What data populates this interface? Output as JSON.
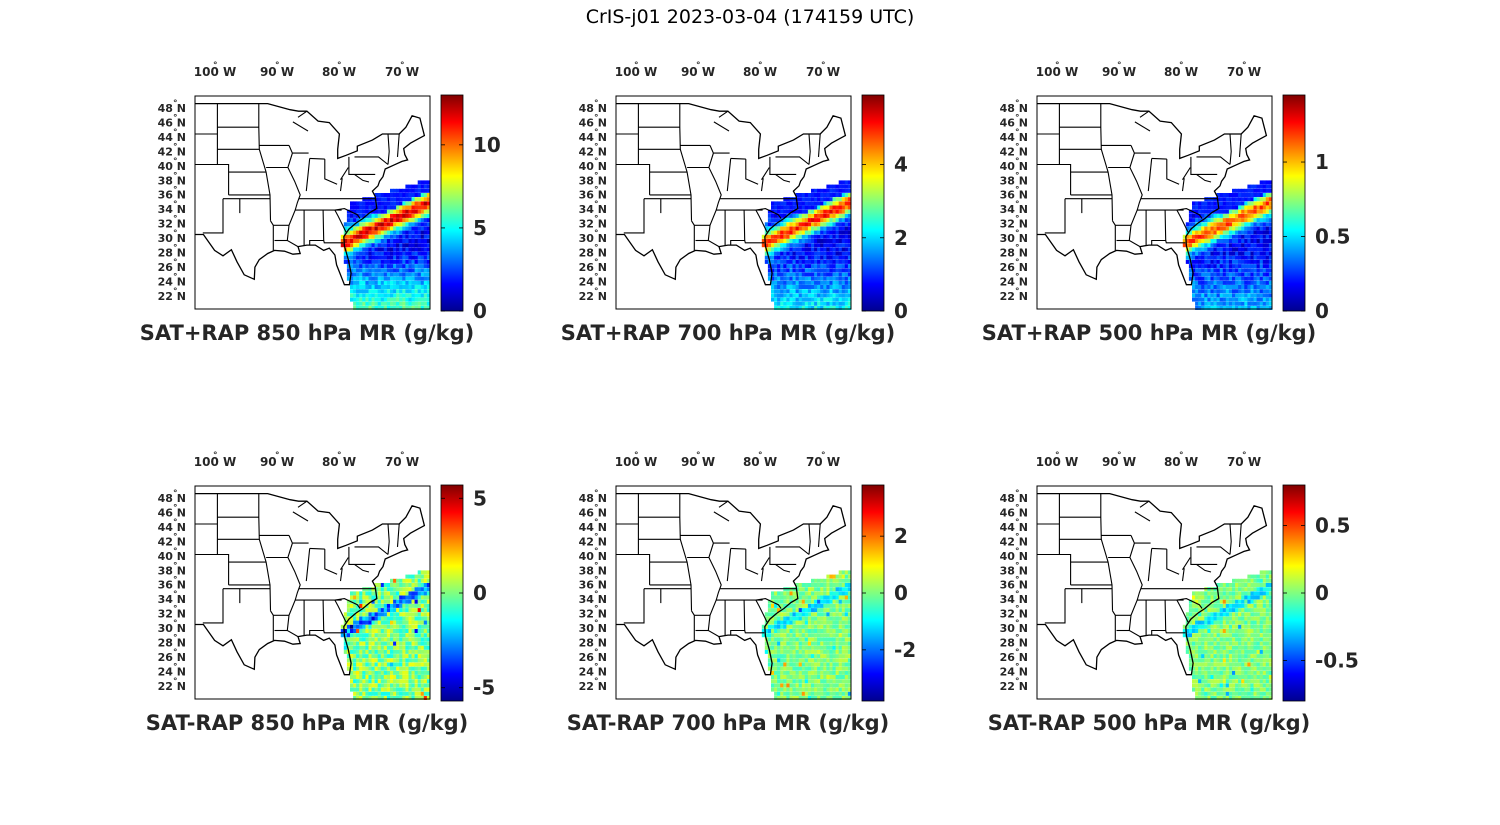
{
  "figure": {
    "title": "CrIS-j01 2023-03-04 (174159 UTC)"
  },
  "panels": [
    {
      "title": "SAT+RAP 850 hPa MR (g/kg)",
      "clim": [
        0,
        13
      ],
      "ticks": [
        {
          "v": 0,
          "t": "0"
        },
        {
          "v": 5,
          "t": "5"
        },
        {
          "v": 10,
          "t": "10"
        }
      ],
      "kind": "total",
      "strength": 1.0
    },
    {
      "title": "SAT+RAP 700 hPa MR (g/kg)",
      "clim": [
        0,
        5.9
      ],
      "ticks": [
        {
          "v": 0,
          "t": "0"
        },
        {
          "v": 2,
          "t": "2"
        },
        {
          "v": 4,
          "t": "4"
        }
      ],
      "kind": "total",
      "strength": 0.75
    },
    {
      "title": "SAT+RAP 500 hPa MR (g/kg)",
      "clim": [
        0,
        1.45
      ],
      "ticks": [
        {
          "v": 0,
          "t": "0"
        },
        {
          "v": 0.5,
          "t": "0.5"
        },
        {
          "v": 1,
          "t": "1"
        }
      ],
      "kind": "total",
      "strength": 0.55
    },
    {
      "title": "SAT-RAP 850 hPa MR (g/kg)",
      "clim": [
        -5.7,
        5.7
      ],
      "ticks": [
        {
          "v": -5,
          "t": "-5"
        },
        {
          "v": 0,
          "t": "0"
        },
        {
          "v": 5,
          "t": "5"
        }
      ],
      "kind": "diff",
      "strength": 1.0
    },
    {
      "title": "SAT-RAP 700 hPa MR (g/kg)",
      "clim": [
        -3.8,
        3.8
      ],
      "ticks": [
        {
          "v": -2,
          "t": "-2"
        },
        {
          "v": 0,
          "t": "0"
        },
        {
          "v": 2,
          "t": "2"
        }
      ],
      "kind": "diff",
      "strength": 0.6
    },
    {
      "title": "SAT-RAP 500 hPa MR (g/kg)",
      "clim": [
        -0.8,
        0.8
      ],
      "ticks": [
        {
          "v": -0.5,
          "t": "-0.5"
        },
        {
          "v": 0,
          "t": "0"
        },
        {
          "v": 0.5,
          "t": "0.5"
        }
      ],
      "kind": "diff",
      "strength": 0.6
    }
  ],
  "lon_labels": [
    "100",
    "90",
    "80",
    "70"
  ],
  "lon_suffix": "W",
  "lat_labels": [
    "48",
    "46",
    "44",
    "42",
    "40",
    "38",
    "36",
    "34",
    "32",
    "30",
    "28",
    "26",
    "24",
    "22"
  ],
  "lat_suffix": "N",
  "degree_symbol": "°",
  "map_extent": {
    "lon": [
      -108,
      -66
    ],
    "lat": [
      22,
      50
    ]
  },
  "colormap": "jet"
}
